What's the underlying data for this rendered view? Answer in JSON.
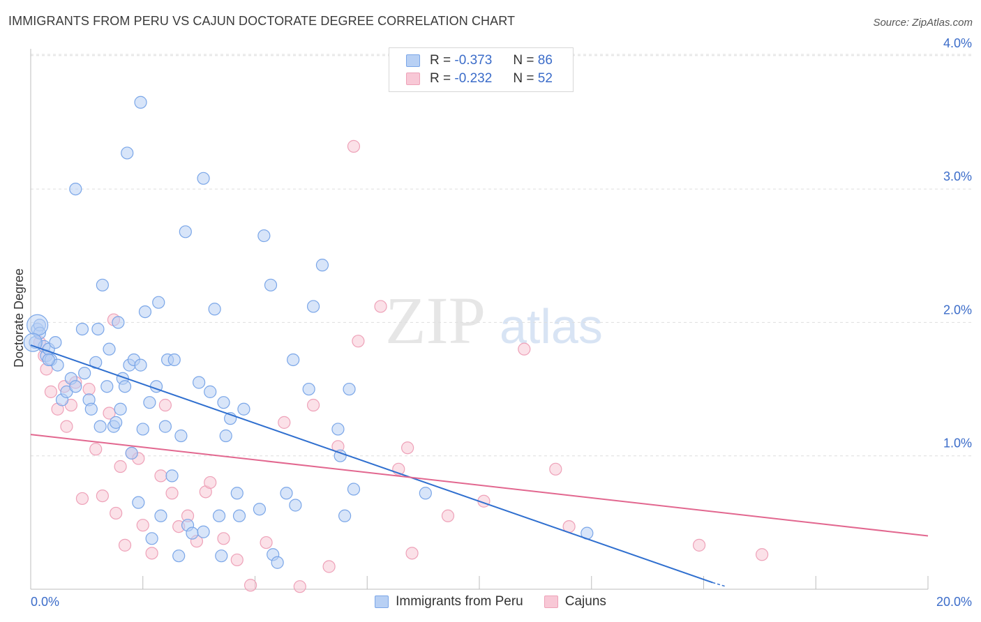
{
  "title": "IMMIGRANTS FROM PERU VS CAJUN DOCTORATE DEGREE CORRELATION CHART",
  "source": "Source: ZipAtlas.com",
  "watermark": {
    "zip": "ZIP",
    "atlas": "atlas"
  },
  "legend_top": [
    {
      "r_label": "R =",
      "r_value": "-0.373",
      "n_label": "N =",
      "n_value": "86"
    },
    {
      "r_label": "R =",
      "r_value": "-0.232",
      "n_label": "N =",
      "n_value": "52"
    }
  ],
  "chart_data": {
    "type": "scatter",
    "title": "IMMIGRANTS FROM PERU VS CAJUN DOCTORATE DEGREE CORRELATION CHART",
    "xlabel": "",
    "ylabel": "Doctorate Degree",
    "xlim": [
      0,
      20
    ],
    "ylim": [
      0,
      4.1
    ],
    "x_tick_labels": [
      "0.0%",
      "20.0%"
    ],
    "y_ticks": [
      1,
      2,
      3,
      4
    ],
    "y_tick_labels": [
      "1.0%",
      "2.0%",
      "3.0%",
      "4.0%"
    ],
    "grid": true,
    "legend_placement": "bottom",
    "series": [
      {
        "name": "Immigrants from Peru",
        "color": "#7aa6e8",
        "fill": "#b8d0f4",
        "line_color": "#2f6fcf",
        "trend": {
          "x": [
            0.0,
            15.2
          ],
          "y": [
            1.83,
            0.05
          ],
          "dash_to": [
            15.5,
            0.02
          ]
        },
        "points": [
          [
            0.1,
            1.85
          ],
          [
            0.15,
            1.95
          ],
          [
            0.2,
            1.98
          ],
          [
            0.3,
            1.82
          ],
          [
            0.35,
            1.75
          ],
          [
            0.4,
            1.8
          ],
          [
            0.45,
            1.72
          ],
          [
            0.55,
            1.85
          ],
          [
            0.6,
            1.68
          ],
          [
            0.7,
            1.42
          ],
          [
            0.8,
            1.48
          ],
          [
            0.9,
            1.58
          ],
          [
            1.0,
            1.52
          ],
          [
            1.15,
            1.95
          ],
          [
            1.2,
            1.62
          ],
          [
            1.3,
            1.42
          ],
          [
            1.35,
            1.35
          ],
          [
            1.45,
            1.7
          ],
          [
            1.5,
            1.95
          ],
          [
            1.55,
            1.22
          ],
          [
            1.6,
            2.28
          ],
          [
            1.7,
            1.52
          ],
          [
            1.75,
            1.8
          ],
          [
            1.85,
            1.22
          ],
          [
            1.9,
            1.25
          ],
          [
            1.95,
            2.0
          ],
          [
            2.0,
            1.35
          ],
          [
            2.05,
            1.58
          ],
          [
            2.1,
            1.52
          ],
          [
            2.2,
            1.68
          ],
          [
            2.25,
            1.02
          ],
          [
            2.3,
            1.72
          ],
          [
            2.4,
            0.65
          ],
          [
            2.45,
            1.68
          ],
          [
            2.5,
            1.2
          ],
          [
            2.55,
            2.08
          ],
          [
            2.65,
            1.4
          ],
          [
            2.7,
            0.38
          ],
          [
            2.8,
            1.52
          ],
          [
            2.85,
            2.15
          ],
          [
            2.9,
            0.55
          ],
          [
            3.0,
            1.22
          ],
          [
            3.05,
            1.72
          ],
          [
            3.15,
            0.85
          ],
          [
            3.2,
            1.72
          ],
          [
            3.3,
            0.25
          ],
          [
            3.35,
            1.15
          ],
          [
            3.45,
            2.68
          ],
          [
            3.5,
            0.48
          ],
          [
            3.6,
            0.42
          ],
          [
            3.75,
            1.55
          ],
          [
            3.85,
            0.43
          ],
          [
            4.0,
            1.48
          ],
          [
            4.1,
            2.1
          ],
          [
            4.2,
            0.55
          ],
          [
            4.25,
            0.25
          ],
          [
            4.3,
            1.4
          ],
          [
            4.35,
            1.15
          ],
          [
            4.45,
            1.28
          ],
          [
            4.6,
            0.72
          ],
          [
            4.65,
            0.55
          ],
          [
            4.75,
            1.35
          ],
          [
            5.1,
            0.6
          ],
          [
            5.2,
            2.65
          ],
          [
            5.4,
            0.26
          ],
          [
            5.35,
            2.28
          ],
          [
            5.5,
            0.2
          ],
          [
            5.7,
            0.72
          ],
          [
            5.85,
            1.72
          ],
          [
            5.9,
            0.63
          ],
          [
            6.2,
            1.5
          ],
          [
            6.3,
            2.12
          ],
          [
            6.5,
            2.43
          ],
          [
            6.85,
            1.2
          ],
          [
            6.9,
            1.0
          ],
          [
            7.0,
            0.55
          ],
          [
            7.1,
            1.5
          ],
          [
            7.2,
            0.75
          ],
          [
            2.45,
            3.65
          ],
          [
            2.15,
            3.27
          ],
          [
            1.0,
            3.0
          ],
          [
            3.85,
            3.08
          ],
          [
            8.8,
            0.72
          ],
          [
            12.4,
            0.42
          ],
          [
            0.4,
            1.72
          ],
          [
            0.2,
            1.92
          ]
        ]
      },
      {
        "name": "Cajuns",
        "color": "#eea1b8",
        "fill": "#f8c8d6",
        "line_color": "#e2678f",
        "trend": {
          "x": [
            0.0,
            20.0
          ],
          "y": [
            1.16,
            0.4
          ]
        },
        "points": [
          [
            0.2,
            1.85
          ],
          [
            0.35,
            1.65
          ],
          [
            0.45,
            1.48
          ],
          [
            0.6,
            1.35
          ],
          [
            0.75,
            1.52
          ],
          [
            0.8,
            1.22
          ],
          [
            0.9,
            1.38
          ],
          [
            1.0,
            1.55
          ],
          [
            1.15,
            0.68
          ],
          [
            1.3,
            1.5
          ],
          [
            1.45,
            1.05
          ],
          [
            1.6,
            0.7
          ],
          [
            1.75,
            1.32
          ],
          [
            1.85,
            2.02
          ],
          [
            1.9,
            0.57
          ],
          [
            2.0,
            0.92
          ],
          [
            2.1,
            0.33
          ],
          [
            2.25,
            1.02
          ],
          [
            2.4,
            0.98
          ],
          [
            2.5,
            0.48
          ],
          [
            2.7,
            0.27
          ],
          [
            2.9,
            0.85
          ],
          [
            3.0,
            1.38
          ],
          [
            3.15,
            0.72
          ],
          [
            3.3,
            0.47
          ],
          [
            3.5,
            0.55
          ],
          [
            3.7,
            0.36
          ],
          [
            3.9,
            0.73
          ],
          [
            4.0,
            0.8
          ],
          [
            4.3,
            0.38
          ],
          [
            4.6,
            0.22
          ],
          [
            4.9,
            0.03
          ],
          [
            5.25,
            0.35
          ],
          [
            5.65,
            1.25
          ],
          [
            6.0,
            0.02
          ],
          [
            6.3,
            1.38
          ],
          [
            6.65,
            0.17
          ],
          [
            6.85,
            1.07
          ],
          [
            7.2,
            3.32
          ],
          [
            7.3,
            1.86
          ],
          [
            7.8,
            2.12
          ],
          [
            8.2,
            0.9
          ],
          [
            8.4,
            1.06
          ],
          [
            8.5,
            0.27
          ],
          [
            9.3,
            0.55
          ],
          [
            10.1,
            0.66
          ],
          [
            11.0,
            1.8
          ],
          [
            11.7,
            0.9
          ],
          [
            12.0,
            0.47
          ],
          [
            14.9,
            0.33
          ],
          [
            16.3,
            0.26
          ],
          [
            0.3,
            1.75
          ]
        ]
      }
    ]
  },
  "legend_bottom": [
    {
      "label": "Immigrants from Peru"
    },
    {
      "label": "Cajuns"
    }
  ]
}
